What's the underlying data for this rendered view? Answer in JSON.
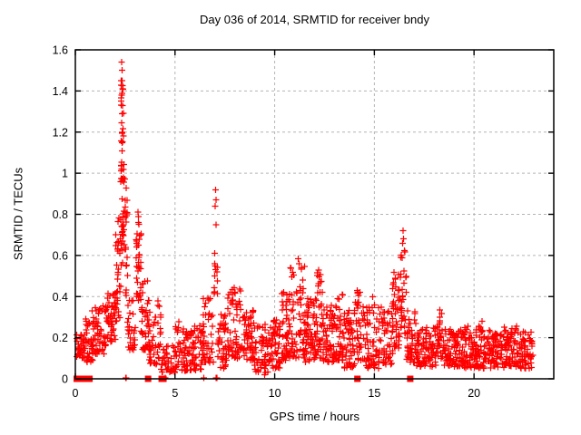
{
  "chart_data": {
    "type": "scatter",
    "title": "Day 036 of 2014, SRMTID for receiver bndy",
    "xlabel": "GPS time / hours",
    "ylabel": "SRMTID / TECUs",
    "xlim": [
      0,
      24
    ],
    "ylim": [
      0,
      1.6
    ],
    "x_ticks": [
      0,
      5,
      10,
      15,
      20
    ],
    "x_tick_labels": [
      "0",
      "5",
      "10",
      "15",
      "20"
    ],
    "y_ticks": [
      0,
      0.2,
      0.4,
      0.6,
      0.8,
      1,
      1.2,
      1.4,
      1.6
    ],
    "y_tick_labels": [
      "0",
      "0.2",
      "0.4",
      "0.6",
      "0.8",
      "1",
      "1.2",
      "1.4",
      "1.6"
    ],
    "grid": true,
    "legend": "none",
    "marker": "plus",
    "marker_size": 7,
    "seed": 2014036,
    "colors": {
      "points": "#ff0000",
      "grid": "#b4b4b4",
      "border": "#000000",
      "text": "#000000",
      "background": "#ffffff"
    },
    "peak_points": [
      [
        2.33,
        1.54
      ],
      [
        2.35,
        1.5
      ],
      [
        2.34,
        1.45
      ],
      [
        2.37,
        1.41
      ],
      [
        2.32,
        1.38
      ],
      [
        2.36,
        1.33
      ],
      [
        2.34,
        1.29
      ],
      [
        3.14,
        0.81
      ],
      [
        3.17,
        0.79
      ],
      [
        7.04,
        0.92
      ],
      [
        7.06,
        0.87
      ],
      [
        7.02,
        0.84
      ],
      [
        7.07,
        0.75
      ],
      [
        11.18,
        0.585
      ],
      [
        11.22,
        0.56
      ],
      [
        12.2,
        0.53
      ],
      [
        16.44,
        0.72
      ],
      [
        16.47,
        0.68
      ],
      [
        16.41,
        0.66
      ],
      [
        18.28,
        0.335
      ],
      [
        20.4,
        0.28
      ],
      [
        0.85,
        0.33
      ],
      [
        2.52,
        0.005
      ],
      [
        2.56,
        0.005
      ],
      [
        4.5,
        0.005
      ],
      [
        6.45,
        0.005
      ],
      [
        7.05,
        0.005
      ],
      [
        7.1,
        0.005
      ],
      [
        9.5,
        0.02
      ],
      [
        9.55,
        0.03
      ]
    ],
    "density_segments": [
      [
        0.05,
        0.5,
        38,
        0.1,
        0.22,
        1.2
      ],
      [
        0.5,
        1.0,
        45,
        0.08,
        0.3,
        1.4
      ],
      [
        1.0,
        1.6,
        52,
        0.12,
        0.36,
        1.4
      ],
      [
        1.6,
        2.0,
        40,
        0.18,
        0.42,
        1.2
      ],
      [
        2.0,
        2.28,
        34,
        0.28,
        0.8,
        1.1
      ],
      [
        2.28,
        2.45,
        55,
        0.55,
        1.46,
        0.9
      ],
      [
        2.45,
        2.62,
        22,
        0.4,
        1.0,
        1.2
      ],
      [
        2.62,
        3.0,
        30,
        0.14,
        0.4,
        1.4
      ],
      [
        3.05,
        3.3,
        36,
        0.38,
        0.78,
        1.0
      ],
      [
        3.3,
        3.7,
        45,
        0.14,
        0.48,
        1.5
      ],
      [
        3.7,
        4.3,
        46,
        0.07,
        0.38,
        1.6
      ],
      [
        4.3,
        5.0,
        40,
        0.03,
        0.17,
        1.3
      ],
      [
        5.0,
        5.6,
        50,
        0.04,
        0.3,
        1.5
      ],
      [
        5.6,
        6.3,
        55,
        0.04,
        0.26,
        1.4
      ],
      [
        6.3,
        6.95,
        52,
        0.08,
        0.42,
        1.5
      ],
      [
        6.95,
        7.15,
        13,
        0.34,
        0.66,
        1.0
      ],
      [
        7.15,
        7.6,
        40,
        0.05,
        0.33,
        1.4
      ],
      [
        7.6,
        8.3,
        58,
        0.1,
        0.45,
        1.5
      ],
      [
        8.3,
        9.0,
        56,
        0.09,
        0.38,
        1.5
      ],
      [
        9.0,
        9.7,
        50,
        0.03,
        0.27,
        1.4
      ],
      [
        9.7,
        10.3,
        52,
        0.05,
        0.3,
        1.4
      ],
      [
        10.3,
        10.8,
        50,
        0.09,
        0.44,
        1.5
      ],
      [
        10.8,
        11.5,
        62,
        0.1,
        0.56,
        1.6
      ],
      [
        11.5,
        12.0,
        55,
        0.08,
        0.4,
        1.5
      ],
      [
        12.0,
        12.4,
        46,
        0.1,
        0.52,
        1.5
      ],
      [
        12.4,
        13.0,
        56,
        0.08,
        0.36,
        1.4
      ],
      [
        13.0,
        13.5,
        50,
        0.09,
        0.42,
        1.5
      ],
      [
        13.5,
        14.0,
        50,
        0.05,
        0.34,
        1.4
      ],
      [
        14.0,
        14.5,
        46,
        0.09,
        0.46,
        1.5
      ],
      [
        14.5,
        15.2,
        56,
        0.05,
        0.4,
        1.5
      ],
      [
        15.2,
        15.9,
        55,
        0.07,
        0.35,
        1.4
      ],
      [
        15.9,
        16.3,
        45,
        0.12,
        0.52,
        1.4
      ],
      [
        16.3,
        16.6,
        32,
        0.22,
        0.64,
        1.2
      ],
      [
        16.6,
        17.1,
        45,
        0.08,
        0.34,
        1.4
      ],
      [
        17.1,
        18.1,
        85,
        0.06,
        0.25,
        1.3
      ],
      [
        18.1,
        18.45,
        30,
        0.09,
        0.32,
        1.3
      ],
      [
        18.45,
        19.5,
        90,
        0.06,
        0.24,
        1.3
      ],
      [
        19.5,
        20.5,
        90,
        0.05,
        0.26,
        1.3
      ],
      [
        20.5,
        21.5,
        88,
        0.05,
        0.24,
        1.3
      ],
      [
        21.5,
        22.2,
        70,
        0.06,
        0.26,
        1.3
      ],
      [
        22.2,
        22.95,
        66,
        0.05,
        0.24,
        1.3
      ]
    ],
    "zero_square_x": [
      0.07,
      0.15,
      0.23,
      0.31,
      0.39,
      0.47,
      0.55,
      0.63,
      0.71,
      3.65,
      4.33,
      4.42,
      14.15,
      16.8
    ]
  }
}
